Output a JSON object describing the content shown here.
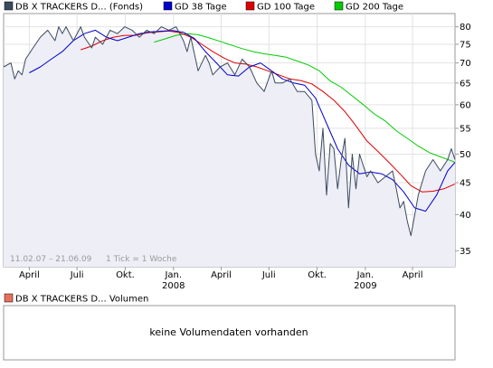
{
  "chart_data": [
    {
      "type": "line",
      "legend": [
        {
          "label": "DB X TRACKERS D... (Fonds)",
          "color": "#3b4a5e"
        },
        {
          "label": "GD 38 Tage",
          "color": "#0000cc"
        },
        {
          "label": "GD 100 Tage",
          "color": "#dd0000"
        },
        {
          "label": "GD 200 Tage",
          "color": "#00cc00"
        }
      ],
      "date_range_label": "11.02.07 – 21.06.09",
      "tick_label": "1 Tick = 1 Woche",
      "x_ticks": [
        {
          "label": "April",
          "year": "",
          "date": "2007-04-01"
        },
        {
          "label": "Juli",
          "year": "",
          "date": "2007-07-01"
        },
        {
          "label": "Okt.",
          "year": "",
          "date": "2007-10-01"
        },
        {
          "label": "Jan.",
          "year": "2008",
          "date": "2008-01-01"
        },
        {
          "label": "April",
          "year": "",
          "date": "2008-04-01"
        },
        {
          "label": "Juli",
          "year": "",
          "date": "2008-07-01"
        },
        {
          "label": "Okt.",
          "year": "",
          "date": "2008-10-01"
        },
        {
          "label": "Jan.",
          "year": "2009",
          "date": "2009-01-01"
        },
        {
          "label": "April",
          "year": "",
          "date": "2009-04-01"
        }
      ],
      "y_axis": {
        "scale": "log",
        "ticks": [
          35,
          40,
          45,
          50,
          55,
          60,
          65,
          70,
          75,
          80
        ],
        "ylim": [
          33,
          84
        ]
      },
      "xlim": [
        "2007-02-11",
        "2009-06-21"
      ],
      "grid": true,
      "series": [
        {
          "name": "DB X TRACKERS D... (Fonds)",
          "color": "#3b4a5e",
          "x": [
            "2007-02-11",
            "2007-02-25",
            "2007-03-04",
            "2007-03-11",
            "2007-03-18",
            "2007-03-25",
            "2007-04-08",
            "2007-04-22",
            "2007-05-06",
            "2007-05-20",
            "2007-05-27",
            "2007-06-03",
            "2007-06-10",
            "2007-06-24",
            "2007-07-08",
            "2007-07-15",
            "2007-07-29",
            "2007-08-05",
            "2007-08-12",
            "2007-08-19",
            "2007-09-02",
            "2007-09-16",
            "2007-09-30",
            "2007-10-14",
            "2007-10-28",
            "2007-11-11",
            "2007-11-25",
            "2007-12-09",
            "2007-12-23",
            "2008-01-06",
            "2008-01-13",
            "2008-01-20",
            "2008-01-27",
            "2008-02-03",
            "2008-02-17",
            "2008-03-02",
            "2008-03-09",
            "2008-03-16",
            "2008-03-30",
            "2008-04-13",
            "2008-04-27",
            "2008-05-11",
            "2008-05-25",
            "2008-06-08",
            "2008-06-22",
            "2008-07-06",
            "2008-07-13",
            "2008-07-27",
            "2008-08-10",
            "2008-08-24",
            "2008-09-07",
            "2008-09-21",
            "2008-09-28",
            "2008-10-05",
            "2008-10-12",
            "2008-10-19",
            "2008-10-26",
            "2008-11-02",
            "2008-11-09",
            "2008-11-16",
            "2008-11-23",
            "2008-11-30",
            "2008-12-07",
            "2008-12-14",
            "2008-12-21",
            "2009-01-04",
            "2009-01-11",
            "2009-01-25",
            "2009-02-08",
            "2009-02-22",
            "2009-03-01",
            "2009-03-08",
            "2009-03-15",
            "2009-03-22",
            "2009-03-29",
            "2009-04-12",
            "2009-04-26",
            "2009-05-10",
            "2009-05-24",
            "2009-06-07",
            "2009-06-14",
            "2009-06-21"
          ],
          "values": [
            69,
            70,
            66,
            68,
            67,
            71,
            74,
            77,
            79,
            76,
            80,
            78,
            80,
            76,
            80,
            77,
            74,
            77,
            76,
            75,
            79,
            78,
            80,
            79,
            77,
            79,
            78,
            80,
            79,
            80,
            78,
            76,
            73,
            77,
            68,
            72,
            70,
            67,
            69,
            70,
            67,
            71,
            69,
            65,
            63,
            68,
            65,
            65,
            66,
            63,
            63,
            61,
            50,
            47,
            55,
            43,
            52,
            51,
            44,
            49,
            53,
            41,
            50,
            44,
            50,
            46,
            47,
            45,
            46,
            47,
            44,
            41,
            42,
            39,
            37,
            43,
            47,
            49,
            47,
            49,
            51,
            49
          ]
        },
        {
          "name": "GD 38 Tage",
          "color": "#0000cc",
          "x": [
            "2007-04-01",
            "2007-04-22",
            "2007-05-13",
            "2007-06-03",
            "2007-06-24",
            "2007-07-15",
            "2007-08-05",
            "2007-08-26",
            "2007-09-16",
            "2007-10-07",
            "2007-10-28",
            "2007-11-18",
            "2007-12-09",
            "2007-12-30",
            "2008-01-20",
            "2008-02-10",
            "2008-03-02",
            "2008-03-23",
            "2008-04-13",
            "2008-05-04",
            "2008-05-25",
            "2008-06-15",
            "2008-07-06",
            "2008-07-27",
            "2008-08-17",
            "2008-09-07",
            "2008-09-28",
            "2008-10-19",
            "2008-11-09",
            "2008-11-30",
            "2008-12-21",
            "2009-01-11",
            "2009-02-01",
            "2009-02-22",
            "2009-03-15",
            "2009-04-05",
            "2009-04-26",
            "2009-05-17",
            "2009-06-07",
            "2009-06-21"
          ],
          "values": [
            67.5,
            69,
            71,
            73,
            76,
            78,
            79,
            77,
            76,
            77,
            78,
            78.5,
            78.7,
            78.9,
            78.4,
            76.6,
            73,
            70,
            67,
            66.7,
            69,
            70,
            68,
            66,
            65,
            64.5,
            61.5,
            56,
            51,
            48,
            46.5,
            46.8,
            46.5,
            45.5,
            43.5,
            41,
            40.5,
            43,
            47,
            48.5
          ]
        },
        {
          "name": "GD 100 Tage",
          "color": "#dd0000",
          "x": [
            "2007-07-08",
            "2007-07-29",
            "2007-08-19",
            "2007-09-09",
            "2007-09-30",
            "2007-10-21",
            "2007-11-11",
            "2007-12-02",
            "2007-12-23",
            "2008-01-13",
            "2008-02-03",
            "2008-02-24",
            "2008-03-16",
            "2008-04-06",
            "2008-04-27",
            "2008-05-18",
            "2008-06-08",
            "2008-06-29",
            "2008-07-20",
            "2008-08-10",
            "2008-08-31",
            "2008-09-21",
            "2008-10-12",
            "2008-11-02",
            "2008-11-23",
            "2008-12-14",
            "2009-01-04",
            "2009-01-25",
            "2009-02-15",
            "2009-03-08",
            "2009-03-29",
            "2009-04-19",
            "2009-05-10",
            "2009-05-31",
            "2009-06-21"
          ],
          "values": [
            73.5,
            74.5,
            76,
            77,
            77.5,
            77.5,
            78.2,
            78.5,
            78.8,
            78.3,
            77,
            75,
            73,
            71.3,
            70,
            69.7,
            69,
            68,
            67,
            66,
            65.6,
            64.8,
            63,
            61,
            58.5,
            55.5,
            52.5,
            50.5,
            48.5,
            46.5,
            44.5,
            43.5,
            43.6,
            44,
            44.8
          ]
        },
        {
          "name": "GD 200 Tage",
          "color": "#00cc00",
          "x": [
            "2007-11-25",
            "2007-12-16",
            "2008-01-06",
            "2008-01-27",
            "2008-02-17",
            "2008-03-09",
            "2008-03-30",
            "2008-04-20",
            "2008-05-11",
            "2008-06-01",
            "2008-06-22",
            "2008-07-13",
            "2008-08-03",
            "2008-08-24",
            "2008-09-14",
            "2008-10-05",
            "2008-10-26",
            "2008-11-16",
            "2008-12-07",
            "2008-12-28",
            "2009-01-18",
            "2009-02-08",
            "2009-03-01",
            "2009-03-22",
            "2009-04-12",
            "2009-05-03",
            "2009-05-24",
            "2009-06-14",
            "2009-06-21"
          ],
          "values": [
            75.6,
            76.5,
            77.5,
            78,
            77.7,
            76.8,
            75.8,
            74.8,
            73.8,
            73,
            72.4,
            72,
            71.5,
            70.5,
            69.5,
            68,
            65.5,
            64,
            62,
            60,
            58,
            56.5,
            54.5,
            53,
            51.5,
            50.3,
            49.5,
            48.8,
            48.5
          ]
        }
      ]
    },
    {
      "type": "bar",
      "legend": [
        {
          "label": "DB X TRACKERS D... Volumen",
          "color": "#e8705a"
        }
      ],
      "message": "keine Volumendaten vorhanden",
      "values": []
    }
  ]
}
